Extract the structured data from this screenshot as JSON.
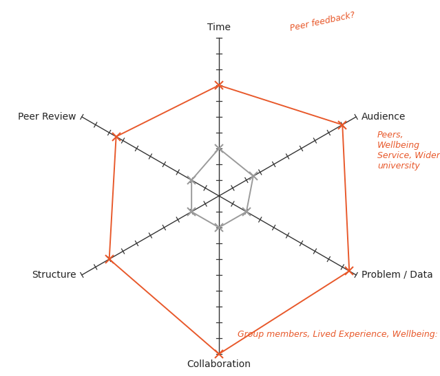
{
  "chart_data": {
    "type": "radar",
    "categories": [
      "Time",
      "Audience",
      "Problem / Data",
      "Collaboration",
      "Structure",
      "Peer Review"
    ],
    "series": [
      {
        "color": "#e8582a",
        "marker": "x",
        "values": [
          7,
          9,
          9.5,
          10,
          8,
          7.5
        ]
      },
      {
        "color": "#9a9a9a",
        "marker": "x",
        "values": [
          3,
          2.5,
          2,
          2,
          2,
          2
        ]
      }
    ],
    "ylim": [
      0,
      10
    ],
    "yticks": [
      0,
      1,
      2,
      3,
      4,
      5,
      6,
      7,
      8,
      9,
      10
    ],
    "tick_labels": false,
    "annotations": [
      "Peer feedback?",
      "Peers, Wellbeing Service, Wider university",
      "Group members, Lived Experience, Wellbeing:"
    ]
  }
}
